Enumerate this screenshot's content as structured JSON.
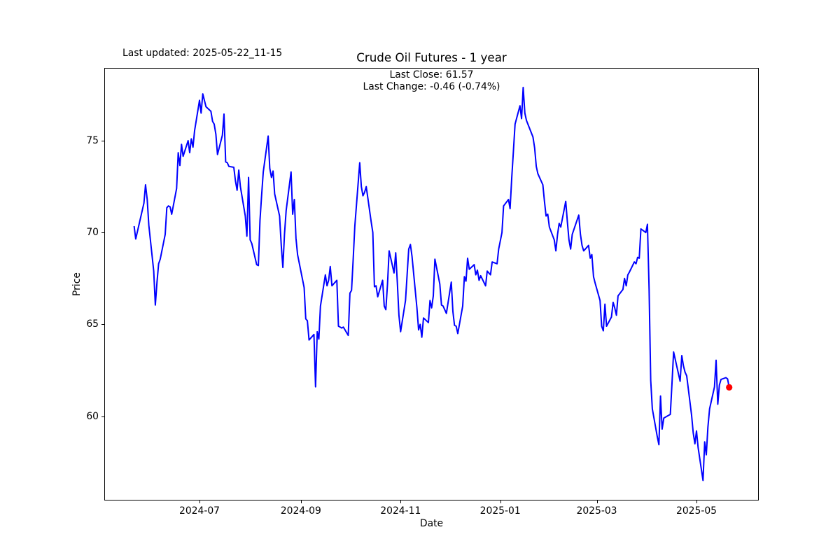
{
  "figure": {
    "last_updated": "Last updated: 2025-05-22_11-15",
    "title": "Crude Oil Futures - 1 year",
    "annotation": {
      "line1": "Last Close: 61.57",
      "line2": "Last Change: -0.46 (-0.74%)"
    }
  },
  "chart_data": {
    "type": "line",
    "title": "Crude Oil Futures - 1 year",
    "xlabel": "Date",
    "ylabel": "Price",
    "legend": "none",
    "grid": false,
    "line_color": "#0000ff",
    "marker_color": "#ff0000",
    "last_close": 61.57,
    "last_change": -0.46,
    "last_change_pct": "-0.74%",
    "x_start": "2024-05-22",
    "x_end": "2025-05-21",
    "ylim": [
      55.4,
      79.0
    ],
    "y_tick_labels": [
      "60",
      "65",
      "70",
      "75"
    ],
    "y_tick_values": [
      60,
      65,
      70,
      75
    ],
    "x_tick_labels": [
      "2024-07",
      "2024-09",
      "2024-11",
      "2025-01",
      "2025-03",
      "2025-05"
    ],
    "x_tick_dates": [
      "2024-07-01",
      "2024-09-01",
      "2024-11-01",
      "2025-01-01",
      "2025-03-01",
      "2025-05-01"
    ],
    "last_point": {
      "date": "2025-05-21",
      "price": 61.57
    },
    "series": [
      {
        "name": "Crude Oil Futures",
        "points": [
          [
            "2024-05-22",
            70.35
          ],
          [
            "2024-05-23",
            69.65
          ],
          [
            "2024-05-24",
            70.05
          ],
          [
            "2024-05-28",
            71.6
          ],
          [
            "2024-05-29",
            72.6
          ],
          [
            "2024-05-30",
            71.8
          ],
          [
            "2024-05-31",
            70.4
          ],
          [
            "2024-06-03",
            67.9
          ],
          [
            "2024-06-04",
            66.05
          ],
          [
            "2024-06-05",
            67.3
          ],
          [
            "2024-06-06",
            68.3
          ],
          [
            "2024-06-07",
            68.55
          ],
          [
            "2024-06-10",
            69.9
          ],
          [
            "2024-06-11",
            71.35
          ],
          [
            "2024-06-12",
            71.45
          ],
          [
            "2024-06-13",
            71.4
          ],
          [
            "2024-06-14",
            71.0
          ],
          [
            "2024-06-17",
            72.4
          ],
          [
            "2024-06-18",
            74.35
          ],
          [
            "2024-06-19",
            73.65
          ],
          [
            "2024-06-20",
            74.8
          ],
          [
            "2024-06-21",
            74.15
          ],
          [
            "2024-06-24",
            75.0
          ],
          [
            "2024-06-25",
            74.35
          ],
          [
            "2024-06-26",
            75.1
          ],
          [
            "2024-06-27",
            74.65
          ],
          [
            "2024-06-28",
            75.55
          ],
          [
            "2024-07-01",
            77.2
          ],
          [
            "2024-07-02",
            76.5
          ],
          [
            "2024-07-03",
            77.55
          ],
          [
            "2024-07-05",
            76.85
          ],
          [
            "2024-07-08",
            76.6
          ],
          [
            "2024-07-09",
            76.05
          ],
          [
            "2024-07-10",
            75.9
          ],
          [
            "2024-07-11",
            75.35
          ],
          [
            "2024-07-12",
            74.25
          ],
          [
            "2024-07-15",
            75.3
          ],
          [
            "2024-07-16",
            76.45
          ],
          [
            "2024-07-17",
            73.85
          ],
          [
            "2024-07-18",
            73.8
          ],
          [
            "2024-07-19",
            73.6
          ],
          [
            "2024-07-22",
            73.55
          ],
          [
            "2024-07-23",
            72.8
          ],
          [
            "2024-07-24",
            72.3
          ],
          [
            "2024-07-25",
            73.4
          ],
          [
            "2024-07-26",
            72.5
          ],
          [
            "2024-07-29",
            70.9
          ],
          [
            "2024-07-30",
            69.8
          ],
          [
            "2024-07-31",
            73.0
          ],
          [
            "2024-08-01",
            69.6
          ],
          [
            "2024-08-02",
            69.4
          ],
          [
            "2024-08-05",
            68.25
          ],
          [
            "2024-08-06",
            68.2
          ],
          [
            "2024-08-07",
            70.65
          ],
          [
            "2024-08-08",
            72.0
          ],
          [
            "2024-08-09",
            73.3
          ],
          [
            "2024-08-12",
            75.25
          ],
          [
            "2024-08-13",
            73.5
          ],
          [
            "2024-08-14",
            73.0
          ],
          [
            "2024-08-15",
            73.35
          ],
          [
            "2024-08-16",
            72.1
          ],
          [
            "2024-08-19",
            70.9
          ],
          [
            "2024-08-20",
            69.3
          ],
          [
            "2024-08-21",
            68.1
          ],
          [
            "2024-08-22",
            69.9
          ],
          [
            "2024-08-23",
            71.2
          ],
          [
            "2024-08-26",
            73.3
          ],
          [
            "2024-08-27",
            71.0
          ],
          [
            "2024-08-28",
            71.8
          ],
          [
            "2024-08-29",
            69.7
          ],
          [
            "2024-08-30",
            68.8
          ],
          [
            "2024-09-03",
            67.0
          ],
          [
            "2024-09-04",
            65.3
          ],
          [
            "2024-09-05",
            65.2
          ],
          [
            "2024-09-06",
            64.15
          ],
          [
            "2024-09-09",
            64.45
          ],
          [
            "2024-09-10",
            61.6
          ],
          [
            "2024-09-11",
            64.6
          ],
          [
            "2024-09-12",
            64.2
          ],
          [
            "2024-09-13",
            66.0
          ],
          [
            "2024-09-16",
            67.7
          ],
          [
            "2024-09-17",
            67.1
          ],
          [
            "2024-09-18",
            67.4
          ],
          [
            "2024-09-19",
            68.15
          ],
          [
            "2024-09-20",
            67.1
          ],
          [
            "2024-09-23",
            67.4
          ],
          [
            "2024-09-24",
            64.9
          ],
          [
            "2024-09-25",
            64.85
          ],
          [
            "2024-09-26",
            64.8
          ],
          [
            "2024-09-27",
            64.85
          ],
          [
            "2024-09-30",
            64.4
          ],
          [
            "2024-10-01",
            66.7
          ],
          [
            "2024-10-02",
            66.85
          ],
          [
            "2024-10-03",
            68.5
          ],
          [
            "2024-10-04",
            70.35
          ],
          [
            "2024-10-07",
            73.8
          ],
          [
            "2024-10-08",
            72.5
          ],
          [
            "2024-10-09",
            72.0
          ],
          [
            "2024-10-10",
            72.2
          ],
          [
            "2024-10-11",
            72.5
          ],
          [
            "2024-10-14",
            70.6
          ],
          [
            "2024-10-15",
            70.0
          ],
          [
            "2024-10-16",
            67.05
          ],
          [
            "2024-10-17",
            67.1
          ],
          [
            "2024-10-18",
            66.5
          ],
          [
            "2024-10-21",
            67.4
          ],
          [
            "2024-10-22",
            66.0
          ],
          [
            "2024-10-23",
            65.8
          ],
          [
            "2024-10-24",
            67.2
          ],
          [
            "2024-10-25",
            69.0
          ],
          [
            "2024-10-28",
            67.8
          ],
          [
            "2024-10-29",
            68.9
          ],
          [
            "2024-10-30",
            67.3
          ],
          [
            "2024-10-31",
            65.5
          ],
          [
            "2024-11-01",
            64.6
          ],
          [
            "2024-11-04",
            66.3
          ],
          [
            "2024-11-05",
            67.7
          ],
          [
            "2024-11-06",
            69.1
          ],
          [
            "2024-11-07",
            69.35
          ],
          [
            "2024-11-08",
            68.7
          ],
          [
            "2024-11-11",
            65.9
          ],
          [
            "2024-11-12",
            64.7
          ],
          [
            "2024-11-13",
            65.0
          ],
          [
            "2024-11-14",
            64.3
          ],
          [
            "2024-11-15",
            65.35
          ],
          [
            "2024-11-18",
            65.1
          ],
          [
            "2024-11-19",
            66.3
          ],
          [
            "2024-11-20",
            65.9
          ],
          [
            "2024-11-21",
            66.55
          ],
          [
            "2024-11-22",
            68.55
          ],
          [
            "2024-11-25",
            67.2
          ],
          [
            "2024-11-26",
            66.05
          ],
          [
            "2024-11-27",
            66.0
          ],
          [
            "2024-11-29",
            65.6
          ],
          [
            "2024-12-02",
            67.3
          ],
          [
            "2024-12-03",
            65.7
          ],
          [
            "2024-12-04",
            64.95
          ],
          [
            "2024-12-05",
            64.9
          ],
          [
            "2024-12-06",
            64.5
          ],
          [
            "2024-12-09",
            66.0
          ],
          [
            "2024-12-10",
            67.6
          ],
          [
            "2024-12-11",
            67.35
          ],
          [
            "2024-12-12",
            68.6
          ],
          [
            "2024-12-13",
            68.0
          ],
          [
            "2024-12-16",
            68.25
          ],
          [
            "2024-12-17",
            67.7
          ],
          [
            "2024-12-18",
            67.95
          ],
          [
            "2024-12-19",
            67.4
          ],
          [
            "2024-12-20",
            67.65
          ],
          [
            "2024-12-23",
            67.1
          ],
          [
            "2024-12-24",
            67.9
          ],
          [
            "2024-12-26",
            67.7
          ],
          [
            "2024-12-27",
            68.4
          ],
          [
            "2024-12-30",
            68.3
          ],
          [
            "2024-12-31",
            69.1
          ],
          [
            "2025-01-02",
            70.0
          ],
          [
            "2025-01-03",
            71.45
          ],
          [
            "2025-01-06",
            71.8
          ],
          [
            "2025-01-07",
            71.3
          ],
          [
            "2025-01-08",
            73.0
          ],
          [
            "2025-01-09",
            74.4
          ],
          [
            "2025-01-10",
            75.9
          ],
          [
            "2025-01-13",
            76.9
          ],
          [
            "2025-01-14",
            76.2
          ],
          [
            "2025-01-15",
            77.9
          ],
          [
            "2025-01-16",
            76.5
          ],
          [
            "2025-01-17",
            76.1
          ],
          [
            "2025-01-21",
            75.2
          ],
          [
            "2025-01-22",
            74.6
          ],
          [
            "2025-01-23",
            73.6
          ],
          [
            "2025-01-24",
            73.2
          ],
          [
            "2025-01-27",
            72.6
          ],
          [
            "2025-01-28",
            71.7
          ],
          [
            "2025-01-29",
            70.9
          ],
          [
            "2025-01-30",
            71.0
          ],
          [
            "2025-01-31",
            70.3
          ],
          [
            "2025-02-03",
            69.6
          ],
          [
            "2025-02-04",
            69.0
          ],
          [
            "2025-02-05",
            69.9
          ],
          [
            "2025-02-06",
            70.5
          ],
          [
            "2025-02-07",
            70.3
          ],
          [
            "2025-02-10",
            71.7
          ],
          [
            "2025-02-11",
            70.6
          ],
          [
            "2025-02-12",
            69.6
          ],
          [
            "2025-02-13",
            69.1
          ],
          [
            "2025-02-14",
            69.9
          ],
          [
            "2025-02-18",
            70.95
          ],
          [
            "2025-02-19",
            69.9
          ],
          [
            "2025-02-20",
            69.3
          ],
          [
            "2025-02-21",
            69.0
          ],
          [
            "2025-02-24",
            69.3
          ],
          [
            "2025-02-25",
            68.6
          ],
          [
            "2025-02-26",
            68.8
          ],
          [
            "2025-02-27",
            67.6
          ],
          [
            "2025-02-28",
            67.25
          ],
          [
            "2025-03-03",
            66.3
          ],
          [
            "2025-03-04",
            64.9
          ],
          [
            "2025-03-05",
            64.65
          ],
          [
            "2025-03-06",
            66.1
          ],
          [
            "2025-03-07",
            64.9
          ],
          [
            "2025-03-10",
            65.4
          ],
          [
            "2025-03-11",
            66.2
          ],
          [
            "2025-03-12",
            65.9
          ],
          [
            "2025-03-13",
            65.5
          ],
          [
            "2025-03-14",
            66.55
          ],
          [
            "2025-03-17",
            66.9
          ],
          [
            "2025-03-18",
            67.5
          ],
          [
            "2025-03-19",
            67.1
          ],
          [
            "2025-03-20",
            67.7
          ],
          [
            "2025-03-21",
            67.85
          ],
          [
            "2025-03-24",
            68.4
          ],
          [
            "2025-03-25",
            68.3
          ],
          [
            "2025-03-26",
            68.65
          ],
          [
            "2025-03-27",
            68.6
          ],
          [
            "2025-03-28",
            70.2
          ],
          [
            "2025-03-31",
            70.0
          ],
          [
            "2025-04-01",
            70.45
          ],
          [
            "2025-04-02",
            66.9
          ],
          [
            "2025-04-03",
            61.95
          ],
          [
            "2025-04-04",
            60.4
          ],
          [
            "2025-04-07",
            58.9
          ],
          [
            "2025-04-08",
            58.45
          ],
          [
            "2025-04-09",
            61.1
          ],
          [
            "2025-04-10",
            59.3
          ],
          [
            "2025-04-11",
            59.9
          ],
          [
            "2025-04-14",
            60.05
          ],
          [
            "2025-04-15",
            60.1
          ],
          [
            "2025-04-16",
            61.8
          ],
          [
            "2025-04-17",
            63.5
          ],
          [
            "2025-04-21",
            61.9
          ],
          [
            "2025-04-22",
            63.3
          ],
          [
            "2025-04-23",
            62.75
          ],
          [
            "2025-04-24",
            62.4
          ],
          [
            "2025-04-25",
            62.2
          ],
          [
            "2025-04-28",
            60.05
          ],
          [
            "2025-04-29",
            59.1
          ],
          [
            "2025-04-30",
            58.5
          ],
          [
            "2025-05-01",
            59.2
          ],
          [
            "2025-05-02",
            58.3
          ],
          [
            "2025-05-05",
            56.5
          ],
          [
            "2025-05-06",
            58.6
          ],
          [
            "2025-05-07",
            57.9
          ],
          [
            "2025-05-08",
            59.4
          ],
          [
            "2025-05-09",
            60.4
          ],
          [
            "2025-05-12",
            61.6
          ],
          [
            "2025-05-13",
            63.05
          ],
          [
            "2025-05-14",
            60.65
          ],
          [
            "2025-05-15",
            61.7
          ],
          [
            "2025-05-16",
            62.0
          ],
          [
            "2025-05-19",
            62.1
          ],
          [
            "2025-05-20",
            62.03
          ],
          [
            "2025-05-21",
            61.57
          ]
        ]
      }
    ]
  }
}
